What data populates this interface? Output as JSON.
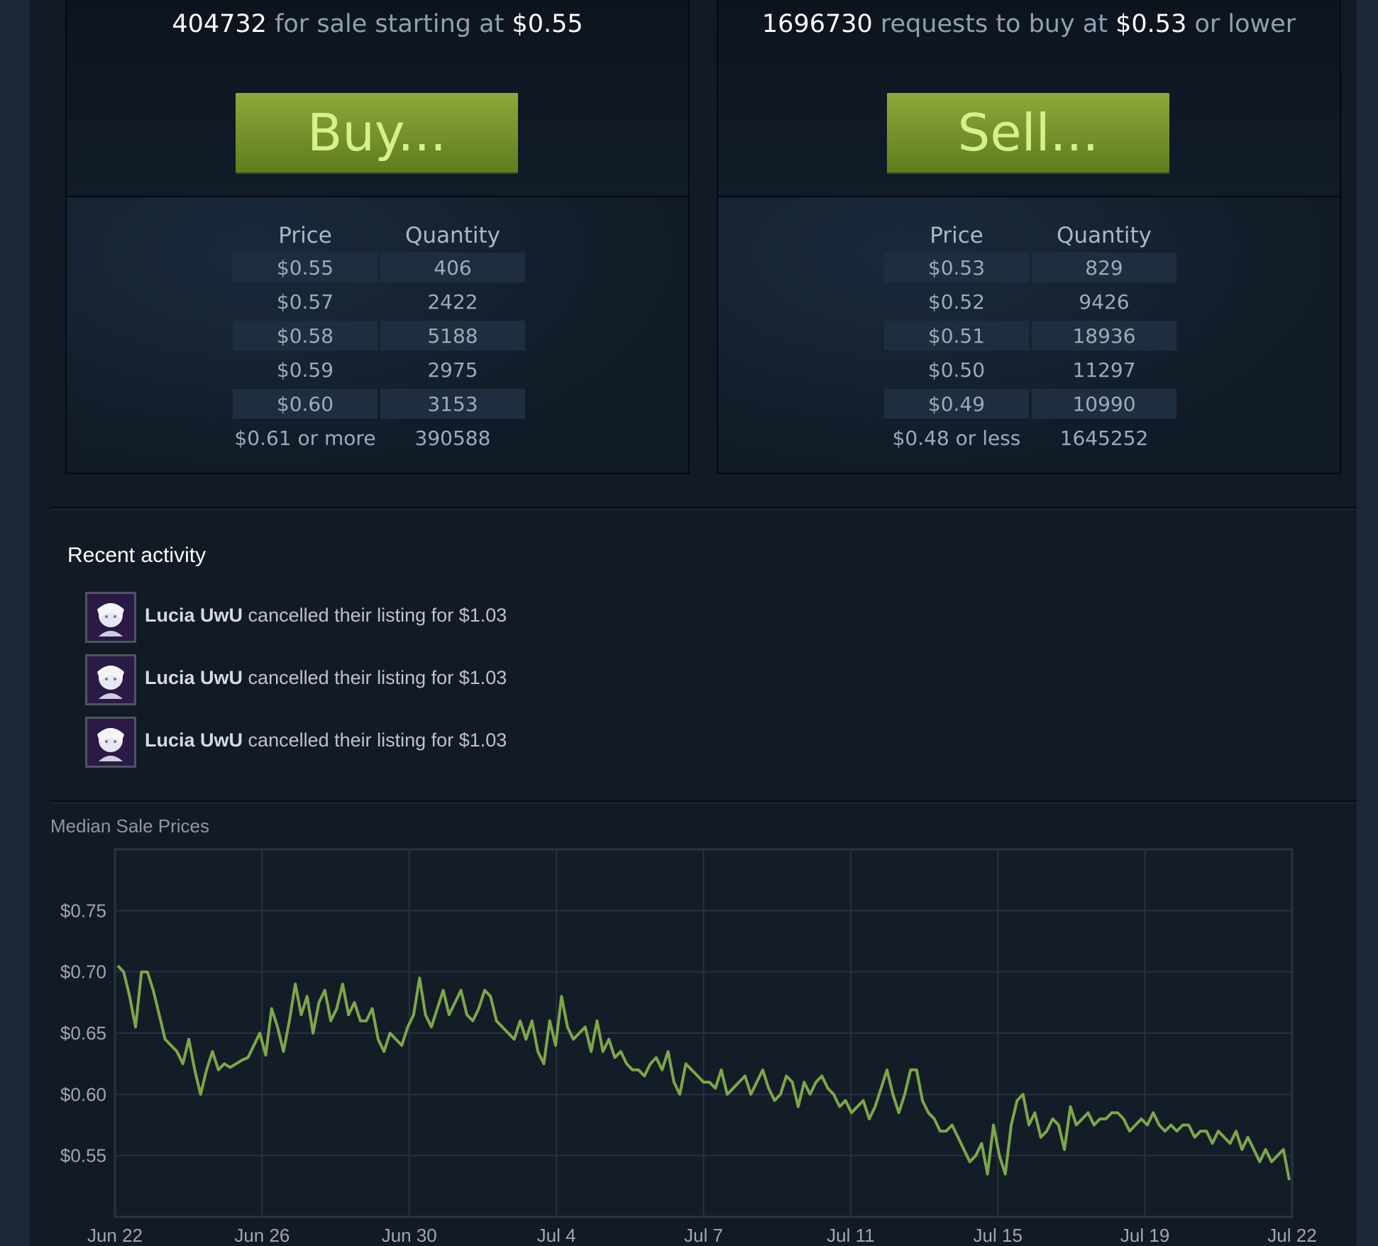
{
  "sell_panel": {
    "count": "404732",
    "text": "for sale starting at",
    "price": "$0.55",
    "button_label": "Buy...",
    "col_price": "Price",
    "col_quantity": "Quantity",
    "rows": [
      {
        "price": "$0.55",
        "qty": "406"
      },
      {
        "price": "$0.57",
        "qty": "2422"
      },
      {
        "price": "$0.58",
        "qty": "5188"
      },
      {
        "price": "$0.59",
        "qty": "2975"
      },
      {
        "price": "$0.60",
        "qty": "3153"
      },
      {
        "price": "$0.61 or more",
        "qty": "390588"
      }
    ]
  },
  "buy_panel": {
    "count": "1696730",
    "text": "requests to buy at",
    "price": "$0.53",
    "suffix": "or lower",
    "button_label": "Sell...",
    "col_price": "Price",
    "col_quantity": "Quantity",
    "rows": [
      {
        "price": "$0.53",
        "qty": "829"
      },
      {
        "price": "$0.52",
        "qty": "9426"
      },
      {
        "price": "$0.51",
        "qty": "18936"
      },
      {
        "price": "$0.50",
        "qty": "11297"
      },
      {
        "price": "$0.49",
        "qty": "10990"
      },
      {
        "price": "$0.48 or less",
        "qty": "1645252"
      }
    ]
  },
  "recent": {
    "title": "Recent activity",
    "items": [
      {
        "user": "Lucia UwU",
        "action": "cancelled their listing for $1.03"
      },
      {
        "user": "Lucia UwU",
        "action": "cancelled their listing for $1.03"
      },
      {
        "user": "Lucia UwU",
        "action": "cancelled their listing for $1.03"
      }
    ]
  },
  "colors": {
    "accent_green": "#7ea64b",
    "button_green": "#7a9a2c"
  },
  "chart_data": {
    "type": "line",
    "title": "Median Sale Prices",
    "x_ticks": [
      "Jun 22",
      "Jun 26",
      "Jun 30",
      "Jul 4",
      "Jul 7",
      "Jul 11",
      "Jul 15",
      "Jul 19",
      "Jul 22"
    ],
    "y_ticks": [
      "$0.75",
      "$0.70",
      "$0.65",
      "$0.60",
      "$0.55"
    ],
    "ylim": [
      0.5,
      0.8
    ],
    "grid": true,
    "series": [
      {
        "values": [
          0.705,
          0.7,
          0.68,
          0.655,
          0.7,
          0.7,
          0.685,
          0.665,
          0.645,
          0.64,
          0.635,
          0.625,
          0.645,
          0.62,
          0.6,
          0.62,
          0.635,
          0.62,
          0.625,
          0.622,
          0.625,
          0.628,
          0.63,
          0.64,
          0.65,
          0.632,
          0.67,
          0.655,
          0.635,
          0.66,
          0.69,
          0.665,
          0.68,
          0.65,
          0.675,
          0.685,
          0.66,
          0.67,
          0.69,
          0.665,
          0.675,
          0.66,
          0.66,
          0.67,
          0.645,
          0.635,
          0.65,
          0.645,
          0.64,
          0.655,
          0.665,
          0.695,
          0.665,
          0.655,
          0.67,
          0.685,
          0.665,
          0.675,
          0.685,
          0.665,
          0.66,
          0.67,
          0.685,
          0.68,
          0.66,
          0.655,
          0.65,
          0.645,
          0.66,
          0.645,
          0.66,
          0.635,
          0.625,
          0.66,
          0.64,
          0.68,
          0.655,
          0.645,
          0.65,
          0.655,
          0.635,
          0.66,
          0.635,
          0.645,
          0.63,
          0.635,
          0.625,
          0.62,
          0.62,
          0.615,
          0.625,
          0.63,
          0.62,
          0.635,
          0.61,
          0.6,
          0.625,
          0.62,
          0.615,
          0.61,
          0.61,
          0.605,
          0.62,
          0.6,
          0.605,
          0.61,
          0.615,
          0.6,
          0.61,
          0.62,
          0.605,
          0.595,
          0.6,
          0.615,
          0.61,
          0.59,
          0.61,
          0.6,
          0.61,
          0.615,
          0.605,
          0.6,
          0.59,
          0.595,
          0.585,
          0.59,
          0.595,
          0.58,
          0.59,
          0.605,
          0.62,
          0.6,
          0.585,
          0.6,
          0.62,
          0.62,
          0.595,
          0.585,
          0.58,
          0.57,
          0.57,
          0.575,
          0.565,
          0.555,
          0.545,
          0.55,
          0.56,
          0.535,
          0.575,
          0.55,
          0.535,
          0.575,
          0.595,
          0.6,
          0.575,
          0.585,
          0.565,
          0.57,
          0.58,
          0.575,
          0.555,
          0.59,
          0.575,
          0.58,
          0.585,
          0.575,
          0.58,
          0.58,
          0.585,
          0.585,
          0.58,
          0.57,
          0.575,
          0.58,
          0.575,
          0.585,
          0.575,
          0.57,
          0.575,
          0.57,
          0.575,
          0.575,
          0.565,
          0.57,
          0.57,
          0.56,
          0.57,
          0.565,
          0.56,
          0.57,
          0.555,
          0.565,
          0.555,
          0.545,
          0.555,
          0.545,
          0.55,
          0.555,
          0.53
        ]
      }
    ]
  }
}
